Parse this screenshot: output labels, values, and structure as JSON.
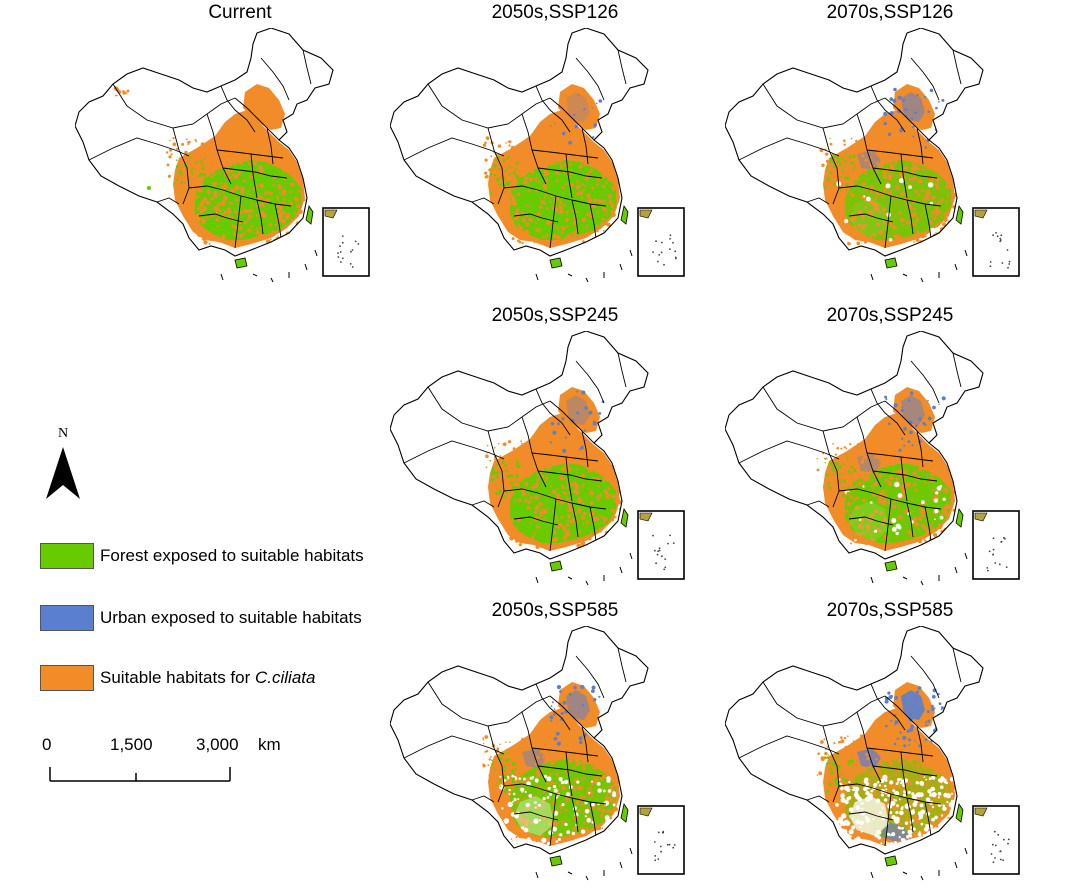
{
  "panels": [
    {
      "title": "Current",
      "variant": "current"
    },
    {
      "title": "2050s,SSP126",
      "variant": "ssp126_2050"
    },
    {
      "title": "2070s,SSP126",
      "variant": "ssp126_2070"
    },
    {
      "title": "2050s,SSP245",
      "variant": "ssp245_2050"
    },
    {
      "title": "2070s,SSP245",
      "variant": "ssp245_2070"
    },
    {
      "title": "2050s,SSP585",
      "variant": "ssp585_2050"
    },
    {
      "title": "2070s,SSP585",
      "variant": "ssp585_2070"
    }
  ],
  "north_arrow": {
    "label": "N",
    "icon": "north-arrow-icon"
  },
  "legend": {
    "items": [
      {
        "label": "Forest exposed to suitable habitats",
        "color": "#66cc00"
      },
      {
        "label": "Urban exposed to suitable habitats",
        "color": "#5b7fd0"
      },
      {
        "label_prefix": "Suitable habitats for ",
        "label_italic": "C.ciliata",
        "color": "#f28c28"
      }
    ]
  },
  "scale_bar": {
    "labels": [
      "0",
      "1,500",
      "3,000"
    ],
    "unit": "km"
  },
  "colors": {
    "forest": "#66cc00",
    "urban": "#5b7fd0",
    "suitable": "#f28c28",
    "boundary": "#000000"
  }
}
